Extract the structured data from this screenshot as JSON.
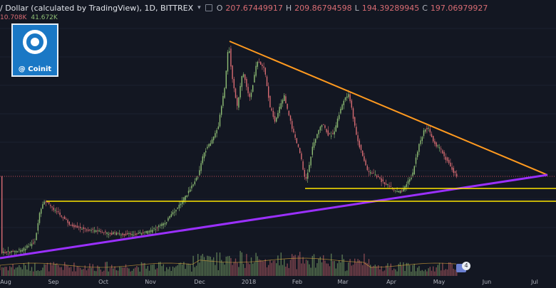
{
  "header": {
    "title": "/ Dollar (calculated by TradingView), 1D, BITTREX",
    "ohlc": [
      {
        "key": "O",
        "value": "207.67449917"
      },
      {
        "key": "H",
        "value": "209.86794598"
      },
      {
        "key": "L",
        "value": "194.39289945"
      },
      {
        "key": "C",
        "value": "197.06979927"
      }
    ]
  },
  "volume_readout": [
    "10.708K",
    "41.672K"
  ],
  "logo": {
    "label": "@ Coinit"
  },
  "badge": {
    "count": "4"
  },
  "x_axis_labels": [
    "Aug",
    "Sep",
    "Oct",
    "Nov",
    "Dec",
    "2018",
    "Feb",
    "Mar",
    "Apr",
    "May",
    "Jun",
    "Jul"
  ],
  "colors": {
    "background": "#131722",
    "up": "#8fbf75",
    "down": "#d96c73",
    "resistance": "#ff9a1f",
    "support_levels": "#ffe600",
    "support_trend": "#9b30ff"
  }
}
